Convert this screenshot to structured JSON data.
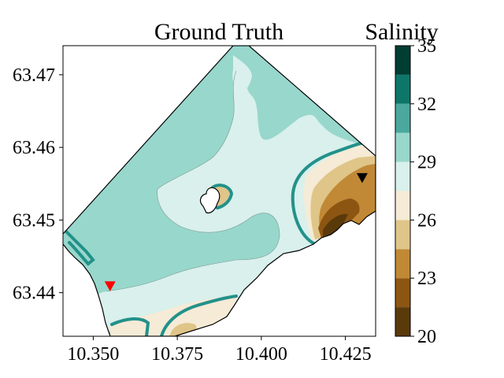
{
  "chart_data": {
    "type": "heatmap",
    "title": "Ground Truth",
    "colorbar_label": "Salinity",
    "xlim": [
      10.341,
      10.434
    ],
    "ylim": [
      63.434,
      63.474
    ],
    "x_ticks": [
      {
        "value": 10.35,
        "label": "10.350"
      },
      {
        "value": 10.375,
        "label": "10.375"
      },
      {
        "value": 10.4,
        "label": "10.400"
      },
      {
        "value": 10.425,
        "label": "10.425"
      }
    ],
    "y_ticks": [
      {
        "value": 63.44,
        "label": "63.44"
      },
      {
        "value": 63.45,
        "label": "63.45"
      },
      {
        "value": 63.46,
        "label": "63.46"
      },
      {
        "value": 63.47,
        "label": "63.47"
      }
    ],
    "colorbar": {
      "range": [
        20,
        35
      ],
      "levels": [
        20,
        21.5,
        23,
        24.5,
        26,
        27.5,
        29,
        30.5,
        32,
        33.5,
        35
      ],
      "colors": [
        "#5a3a0b",
        "#8d5512",
        "#c18936",
        "#e0c589",
        "#f5ebd6",
        "#d9f0ec",
        "#98d7cc",
        "#4aa99c",
        "#0e7669",
        "#003d33"
      ],
      "tick_labels": [
        {
          "value": 20,
          "label": "20"
        },
        {
          "value": 23,
          "label": "23"
        },
        {
          "value": 26,
          "label": "26"
        },
        {
          "value": 29,
          "label": "29"
        },
        {
          "value": 32,
          "label": "32"
        },
        {
          "value": 35,
          "label": "35"
        }
      ]
    },
    "markers": [
      {
        "name": "red-marker",
        "x": 10.355,
        "y": 63.4408,
        "color": "#ff0000"
      },
      {
        "name": "black-marker",
        "x": 10.43,
        "y": 63.4557,
        "color": "#000000"
      }
    ],
    "highlight_contour_color": "#23918a",
    "grid": false
  }
}
